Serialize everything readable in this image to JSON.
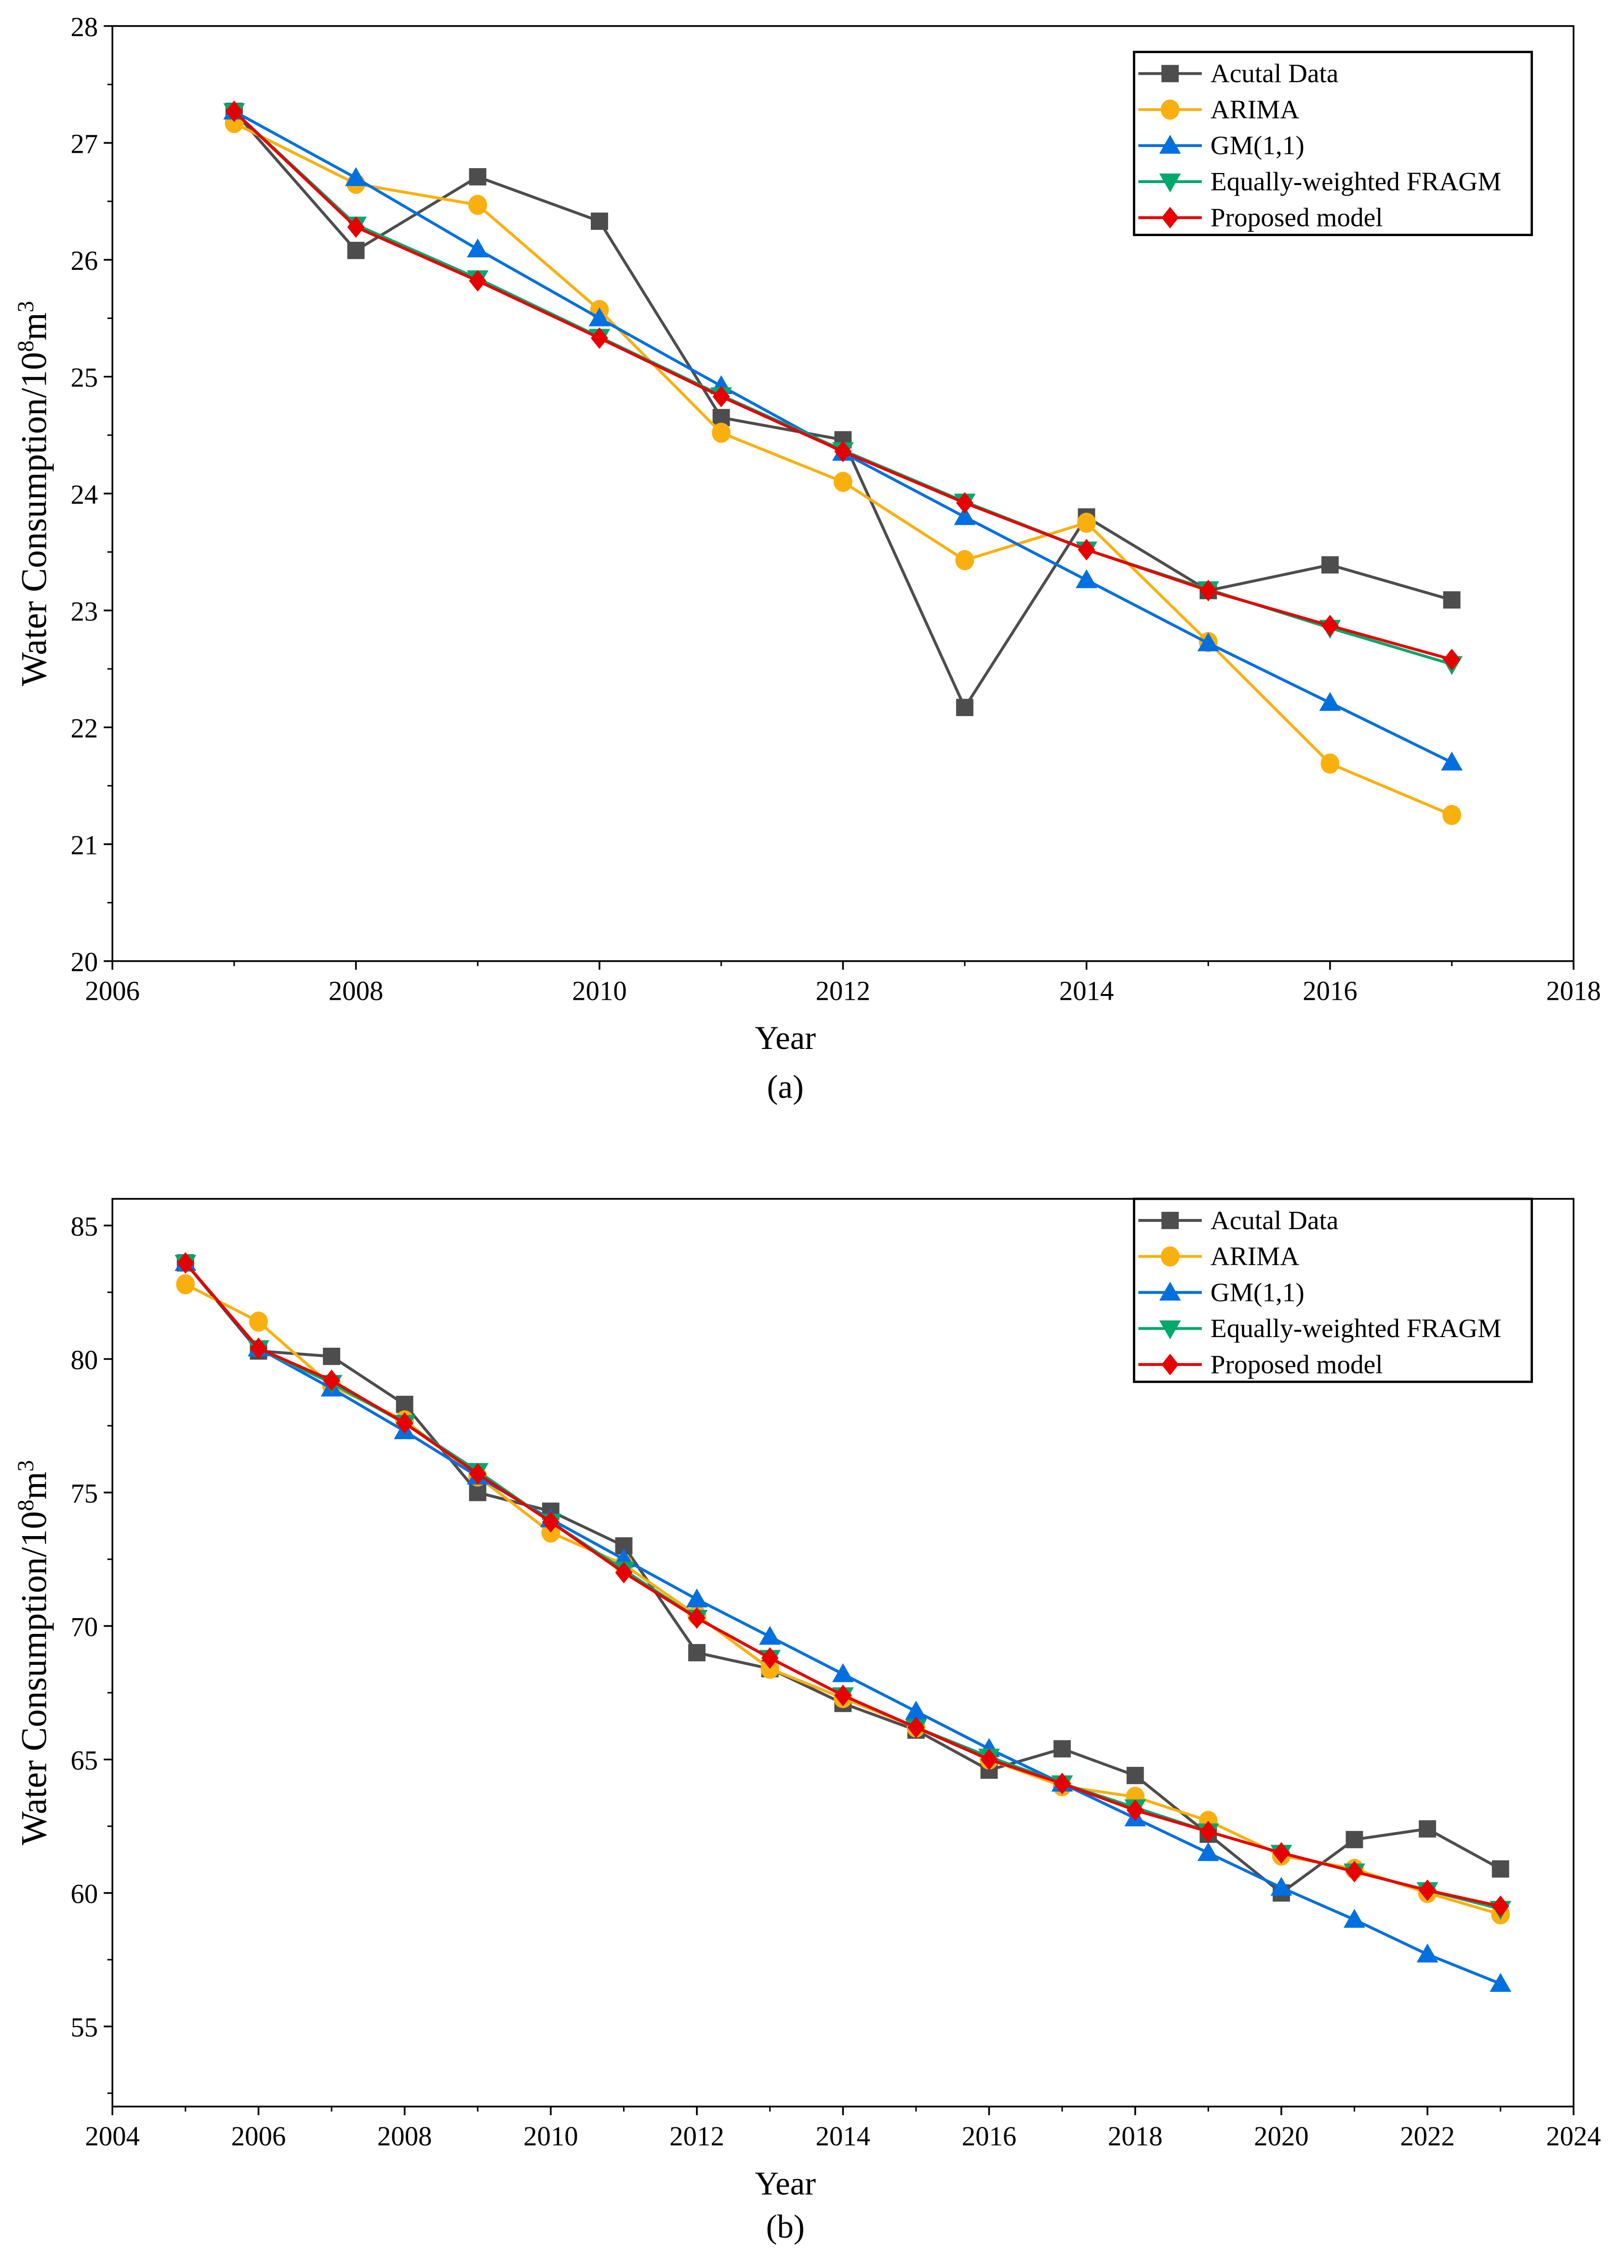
{
  "colors": {
    "actual": "#4d4d4d",
    "arima": "#f9b00f",
    "gm": "#0070e0",
    "fragm": "#00a86b",
    "proposed": "#e60000"
  },
  "chart_data": [
    {
      "type": "line",
      "caption": "(a)",
      "xlabel": "Year",
      "ylabel": "Water Consumption/10",
      "ylabel_sup": "8",
      "ylabel_unit": "m",
      "ylabel_unit_sup": "3",
      "xlim": [
        2006,
        2018
      ],
      "ylim": [
        20,
        28
      ],
      "xticks": [
        2006,
        2008,
        2010,
        2012,
        2014,
        2016,
        2018
      ],
      "yticks": [
        20,
        21,
        22,
        23,
        24,
        25,
        26,
        27,
        28
      ],
      "legend_position": "top-right",
      "x": [
        2007,
        2008,
        2009,
        2010,
        2011,
        2012,
        2013,
        2014,
        2015,
        2016,
        2017
      ],
      "series": [
        {
          "key": "actual",
          "name": "Acutal Data",
          "marker": "square",
          "values": [
            27.27,
            26.08,
            26.71,
            26.33,
            24.65,
            24.46,
            22.17,
            23.8,
            23.17,
            23.39,
            23.09
          ]
        },
        {
          "key": "arima",
          "name": "ARIMA",
          "marker": "circle",
          "values": [
            27.17,
            26.65,
            26.47,
            25.57,
            24.52,
            24.1,
            23.43,
            23.75,
            22.73,
            21.69,
            21.25
          ]
        },
        {
          "key": "gm",
          "name": "GM(1,1)",
          "marker": "triangle-up",
          "values": [
            27.27,
            26.7,
            26.09,
            25.5,
            24.92,
            24.35,
            23.8,
            23.26,
            22.72,
            22.21,
            21.7
          ]
        },
        {
          "key": "fragm",
          "name": "Equally-weighted FRAGM",
          "marker": "triangle-down",
          "values": [
            27.27,
            26.3,
            25.84,
            25.34,
            24.84,
            24.37,
            23.93,
            23.52,
            23.18,
            22.85,
            22.54
          ]
        },
        {
          "key": "proposed",
          "name": "Proposed model",
          "marker": "diamond",
          "values": [
            27.27,
            26.28,
            25.82,
            25.33,
            24.83,
            24.36,
            23.92,
            23.52,
            23.17,
            22.87,
            22.58
          ]
        }
      ]
    },
    {
      "type": "line",
      "caption": "(b)",
      "xlabel": "Year",
      "ylabel": "Water Consumption/10",
      "ylabel_sup": "8",
      "ylabel_unit": "m",
      "ylabel_unit_sup": "3",
      "xlim": [
        2004,
        2024
      ],
      "ylim": [
        52,
        86
      ],
      "xticks": [
        2004,
        2006,
        2008,
        2010,
        2012,
        2014,
        2016,
        2018,
        2020,
        2022,
        2024
      ],
      "yticks": [
        55,
        60,
        65,
        70,
        75,
        80,
        85
      ],
      "legend_position": "top-right",
      "x": [
        2005,
        2006,
        2007,
        2008,
        2009,
        2010,
        2011,
        2012,
        2013,
        2014,
        2015,
        2016,
        2017,
        2018,
        2019,
        2020,
        2021,
        2022,
        2023
      ],
      "series": [
        {
          "key": "actual",
          "name": "Acutal Data",
          "marker": "square",
          "values": [
            83.6,
            80.3,
            80.1,
            78.3,
            75.0,
            74.3,
            73.0,
            69.0,
            68.4,
            67.1,
            66.1,
            64.6,
            65.4,
            64.4,
            62.2,
            60.0,
            62.0,
            62.4,
            60.9
          ]
        },
        {
          "key": "arima",
          "name": "ARIMA",
          "marker": "circle",
          "values": [
            82.8,
            81.4,
            79.0,
            77.7,
            75.6,
            73.5,
            72.3,
            70.4,
            68.4,
            67.3,
            66.2,
            65.0,
            64.0,
            63.6,
            62.7,
            61.4,
            60.9,
            60.0,
            59.2
          ]
        },
        {
          "key": "gm",
          "name": "GM(1,1)",
          "marker": "triangle-up",
          "values": [
            83.6,
            80.4,
            78.9,
            77.3,
            75.6,
            74.0,
            72.5,
            71.0,
            69.6,
            68.2,
            66.8,
            65.4,
            64.1,
            62.8,
            61.5,
            60.2,
            59.0,
            57.7,
            56.6
          ]
        },
        {
          "key": "fragm",
          "name": "Equally-weighted FRAGM",
          "marker": "triangle-down",
          "values": [
            83.6,
            80.4,
            79.1,
            77.6,
            75.8,
            73.9,
            72.1,
            70.3,
            68.8,
            67.4,
            66.2,
            65.1,
            64.1,
            63.2,
            62.3,
            61.5,
            60.8,
            60.1,
            59.4
          ]
        },
        {
          "key": "proposed",
          "name": "Proposed model",
          "marker": "diamond",
          "values": [
            83.6,
            80.4,
            79.2,
            77.6,
            75.7,
            73.9,
            72.0,
            70.3,
            68.8,
            67.4,
            66.2,
            65.0,
            64.1,
            63.1,
            62.3,
            61.5,
            60.8,
            60.1,
            59.5
          ]
        }
      ]
    }
  ]
}
